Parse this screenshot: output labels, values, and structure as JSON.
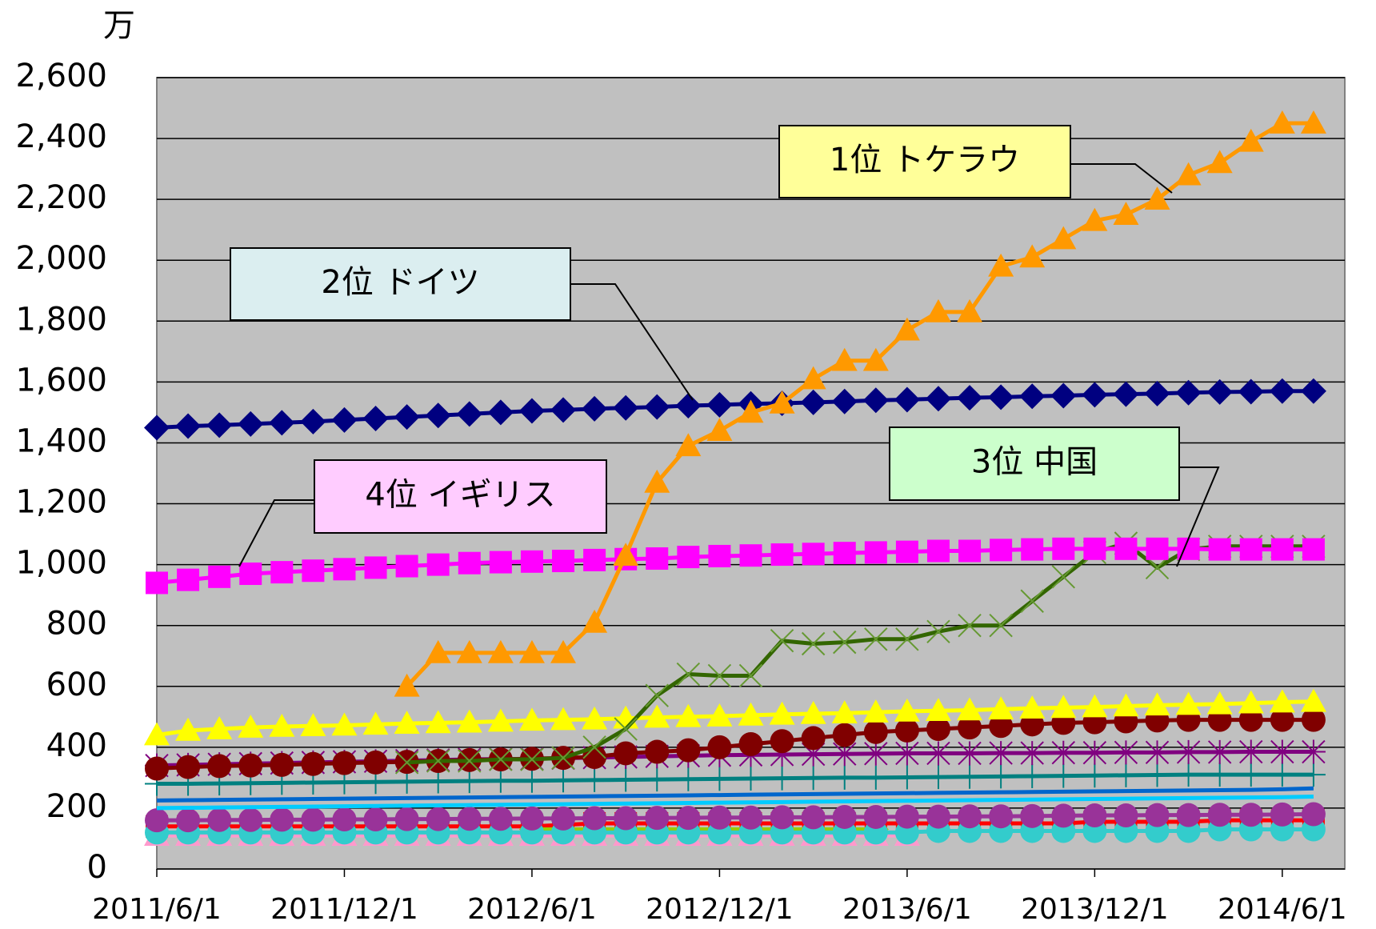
{
  "chart_data": {
    "type": "line",
    "y_unit": "万",
    "x": [
      "2011/6/1",
      "2011/7/1",
      "2011/8/1",
      "2011/9/1",
      "2011/10/1",
      "2011/11/1",
      "2011/12/1",
      "2012/1/1",
      "2012/2/1",
      "2012/3/1",
      "2012/4/1",
      "2012/5/1",
      "2012/6/1",
      "2012/7/1",
      "2012/8/1",
      "2012/9/1",
      "2012/10/1",
      "2012/11/1",
      "2012/12/1",
      "2013/1/1",
      "2013/2/1",
      "2013/3/1",
      "2013/4/1",
      "2013/5/1",
      "2013/6/1",
      "2013/7/1",
      "2013/8/1",
      "2013/9/1",
      "2013/10/1",
      "2013/11/1",
      "2013/12/1",
      "2014/1/1",
      "2014/2/1",
      "2014/3/1",
      "2014/4/1",
      "2014/5/1",
      "2014/6/1",
      "2014/7/1"
    ],
    "xlim": [
      "2011/6/1",
      "2014/8/1"
    ],
    "xticks": [
      "2011/6/1",
      "2011/12/1",
      "2012/6/1",
      "2012/12/1",
      "2013/6/1",
      "2013/12/1",
      "2014/6/1"
    ],
    "ylim": [
      0,
      2600
    ],
    "yticks": [
      0,
      200,
      400,
      600,
      800,
      {
        "value": 1000,
        "label": "1,000"
      },
      {
        "value": 1200,
        "label": "1,200"
      },
      {
        "value": 1400,
        "label": "1,400"
      },
      {
        "value": 1600,
        "label": "1,600"
      },
      {
        "value": 1800,
        "label": "1,800"
      },
      {
        "value": 2000,
        "label": "2,000"
      },
      {
        "value": 2200,
        "label": "2,200"
      },
      {
        "value": 2400,
        "label": "2,400"
      },
      {
        "value": 2600,
        "label": "2,600"
      }
    ],
    "grid": true,
    "plot_background": "#c0c0c0",
    "series": [
      {
        "color": "#ff0000",
        "marker": "square",
        "values": [
          140,
          140,
          140,
          140,
          140,
          140,
          140,
          140,
          140,
          140,
          140,
          140,
          140,
          145,
          150,
          150,
          150,
          150,
          150,
          150,
          150,
          150,
          150,
          150,
          150,
          150,
          150,
          150,
          150,
          150,
          155,
          155,
          155,
          155,
          160,
          160,
          160,
          160
        ]
      },
      {
        "color": "#99cc00",
        "marker": "diamond",
        "values": [
          null,
          null,
          null,
          null,
          null,
          null,
          null,
          null,
          null,
          null,
          null,
          null,
          130,
          130,
          130,
          130,
          130,
          130,
          130,
          130,
          130,
          130,
          130,
          130,
          null,
          null,
          null,
          null,
          null,
          null,
          null,
          null,
          null,
          null,
          null,
          null,
          null,
          null
        ]
      },
      {
        "color": "#ff99cc",
        "marker": "triangle",
        "values": [
          110,
          110,
          110,
          110,
          110,
          110,
          110,
          110,
          110,
          110,
          110,
          110,
          110,
          110,
          110,
          110,
          110,
          110,
          110,
          110,
          110,
          110,
          110,
          110,
          110,
          null,
          null,
          null,
          null,
          null,
          null,
          null,
          null,
          null,
          null,
          null,
          null,
          null
        ]
      },
      {
        "color": "#33cccc",
        "marker": "circle",
        "values": [
          120,
          120,
          120,
          120,
          120,
          120,
          120,
          120,
          120,
          120,
          120,
          120,
          120,
          120,
          120,
          120,
          120,
          120,
          120,
          120,
          120,
          120,
          120,
          120,
          120,
          125,
          125,
          125,
          125,
          125,
          125,
          125,
          125,
          125,
          130,
          130,
          130,
          130
        ]
      },
      {
        "color": "#993399",
        "marker": "circle",
        "values": [
          160,
          160,
          161,
          161,
          162,
          162,
          163,
          163,
          164,
          164,
          165,
          165,
          166,
          166,
          167,
          167,
          168,
          168,
          169,
          169,
          170,
          170,
          171,
          171,
          172,
          172,
          173,
          173,
          174,
          175,
          176,
          176,
          177,
          177,
          178,
          178,
          179,
          180
        ]
      },
      {
        "color": "#00ccff",
        "marker": "none",
        "values": [
          200,
          201,
          202,
          203,
          204,
          205,
          206,
          207,
          208,
          209,
          210,
          211,
          212,
          213,
          214,
          215,
          216,
          217,
          218,
          219,
          220,
          221,
          222,
          223,
          224,
          225,
          226,
          227,
          228,
          229,
          230,
          231,
          232,
          233,
          234,
          235,
          236,
          238
        ]
      },
      {
        "color": "#0066cc",
        "marker": "none",
        "values": [
          225,
          226,
          227,
          228,
          229,
          230,
          231,
          232,
          233,
          234,
          235,
          236,
          237,
          238,
          239,
          240,
          241,
          242,
          243,
          244,
          245,
          246,
          247,
          248,
          249,
          250,
          251,
          252,
          253,
          254,
          255,
          256,
          257,
          258,
          259,
          260,
          262,
          265
        ]
      },
      {
        "color": "#008080",
        "marker": "plus",
        "values": [
          280,
          280,
          281,
          282,
          283,
          284,
          285,
          286,
          287,
          288,
          289,
          290,
          290,
          291,
          292,
          293,
          294,
          295,
          296,
          297,
          298,
          299,
          300,
          300,
          301,
          302,
          303,
          304,
          305,
          306,
          307,
          308,
          309,
          310,
          310,
          310,
          310,
          310
        ]
      },
      {
        "color": "#800080",
        "marker": "asterisk",
        "values": [
          340,
          342,
          344,
          346,
          348,
          350,
          352,
          354,
          356,
          358,
          360,
          361,
          362,
          364,
          366,
          368,
          370,
          372,
          374,
          375,
          376,
          377,
          378,
          379,
          380,
          380,
          380,
          381,
          381,
          382,
          382,
          383,
          383,
          384,
          384,
          385,
          385,
          385
        ]
      },
      {
        "color": "#800000",
        "marker": "circle",
        "values": [
          330,
          335,
          338,
          340,
          342,
          345,
          348,
          350,
          352,
          355,
          358,
          360,
          362,
          365,
          368,
          380,
          385,
          390,
          400,
          410,
          420,
          430,
          440,
          450,
          455,
          460,
          465,
          470,
          475,
          480,
          482,
          485,
          488,
          490,
          490,
          490,
          490,
          490
        ]
      },
      {
        "color": "#ffff00",
        "marker": "triangle",
        "values": [
          440,
          455,
          460,
          465,
          468,
          470,
          472,
          475,
          478,
          480,
          482,
          485,
          488,
          490,
          492,
          495,
          498,
          500,
          502,
          505,
          508,
          510,
          512,
          515,
          518,
          520,
          522,
          525,
          528,
          530,
          532,
          535,
          538,
          540,
          542,
          545,
          548,
          550
        ]
      },
      {
        "color": "#336600",
        "marker": "x",
        "marker_color": "#669933",
        "values": [
          null,
          null,
          null,
          null,
          null,
          null,
          null,
          null,
          350,
          355,
          355,
          360,
          360,
          365,
          400,
          460,
          570,
          640,
          635,
          635,
          750,
          740,
          745,
          755,
          755,
          780,
          800,
          800,
          880,
          960,
          1040,
          1070,
          990,
          1050,
          1060,
          1060,
          1060,
          1060
        ]
      },
      {
        "color": "#ff00ff",
        "marker": "square",
        "values": [
          940,
          950,
          960,
          970,
          975,
          980,
          985,
          990,
          995,
          1000,
          1005,
          1008,
          1010,
          1012,
          1015,
          1018,
          1020,
          1025,
          1028,
          1030,
          1033,
          1035,
          1038,
          1040,
          1042,
          1045,
          1045,
          1048,
          1050,
          1052,
          1052,
          1052,
          1052,
          1052,
          1050,
          1050,
          1050,
          1050
        ]
      },
      {
        "color": "#000080",
        "marker": "diamond",
        "values": [
          1450,
          1455,
          1458,
          1462,
          1466,
          1470,
          1475,
          1480,
          1485,
          1490,
          1495,
          1500,
          1505,
          1508,
          1512,
          1515,
          1518,
          1522,
          1525,
          1528,
          1530,
          1533,
          1536,
          1540,
          1542,
          1545,
          1548,
          1550,
          1553,
          1555,
          1558,
          1560,
          1562,
          1565,
          1567,
          1568,
          1570,
          1570
        ]
      },
      {
        "color": "#ff9900",
        "marker": "triangle",
        "values": [
          null,
          null,
          null,
          null,
          null,
          null,
          null,
          null,
          600,
          710,
          710,
          710,
          710,
          710,
          810,
          1030,
          1270,
          1390,
          1440,
          1500,
          1530,
          1610,
          1670,
          1670,
          1770,
          1830,
          1830,
          1980,
          2010,
          2070,
          2130,
          2150,
          2200,
          2280,
          2320,
          2390,
          2450,
          2450
        ]
      }
    ],
    "annotations": [
      {
        "text": "1位 トケラウ",
        "color": "#ffff99"
      },
      {
        "text": "2位 ドイツ",
        "color": "#dbeef0"
      },
      {
        "text": "3位 中国",
        "color": "#ccffcc"
      },
      {
        "text": "4位 イギリス",
        "color": "#ffccff"
      }
    ]
  }
}
